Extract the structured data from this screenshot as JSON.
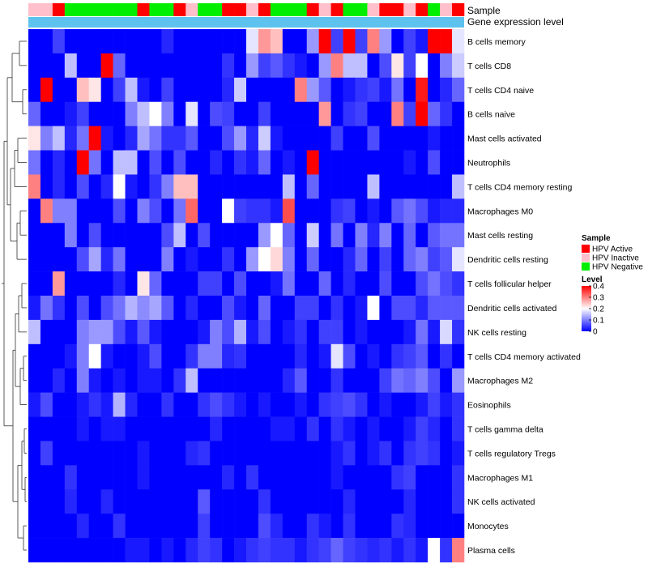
{
  "chart_data": {
    "type": "heatmap",
    "title": "",
    "annotation_labels": [
      "Sample",
      "Gene expression level"
    ],
    "rows": [
      "B cells memory",
      "T cells CD8",
      "T cells CD4 naive",
      "B cells naive",
      "Mast cells activated",
      "Neutrophils",
      "T cells CD4 memory resting",
      "Macrophages M0",
      "Mast cells resting",
      "Dendritic cells resting",
      "T cells follicular helper",
      "Dendritic cells activated",
      "NK cells resting",
      "T cells CD4 memory activated",
      "Macrophages M2",
      "Eosinophils",
      "T cells gamma delta",
      "T cells regulatory  Tregs",
      "Macrophages M1",
      "NK cells activated",
      "Monocytes",
      "Plasma cells"
    ],
    "columns": 36,
    "sample_annotation": [
      "I",
      "I",
      "A",
      "N",
      "N",
      "N",
      "N",
      "N",
      "N",
      "A",
      "N",
      "N",
      "A",
      "I",
      "N",
      "N",
      "A",
      "A",
      "I",
      "A",
      "N",
      "N",
      "N",
      "A",
      "I",
      "A",
      "N",
      "N",
      "I",
      "A",
      "A",
      "I",
      "A",
      "N",
      "I",
      "A"
    ],
    "value_range": [
      0,
      0.4
    ],
    "values": [
      [
        0,
        0,
        0.05,
        0,
        0,
        0,
        0,
        0,
        0,
        0,
        0,
        0.03,
        0,
        0,
        0,
        0,
        0,
        0,
        0.18,
        0.28,
        0.25,
        0,
        0,
        0.12,
        0.4,
        0.05,
        0.4,
        0.05,
        0.3,
        0.12,
        0,
        0.05,
        0.02,
        0.4,
        0.4,
        0.18
      ],
      [
        0,
        0,
        0,
        0.15,
        0,
        0,
        0.4,
        0.08,
        0,
        0,
        0,
        0,
        0,
        0,
        0,
        0,
        0.04,
        0,
        0.12,
        0.05,
        0.07,
        0.04,
        0.02,
        0,
        0.12,
        0.3,
        0.15,
        0.15,
        0,
        0.06,
        0.22,
        0.05,
        0.2,
        0,
        0.1,
        0.16
      ],
      [
        0,
        0.4,
        0,
        0,
        0.25,
        0.22,
        0,
        0.05,
        0.15,
        0.02,
        0,
        0.05,
        0,
        0,
        0,
        0,
        0.03,
        0.16,
        0,
        0,
        0,
        0,
        0.3,
        0.12,
        0.07,
        0,
        0.02,
        0.04,
        0.05,
        0.02,
        0.09,
        0,
        0.38,
        0,
        0.03,
        0.08
      ],
      [
        0.08,
        0,
        0,
        0.02,
        0.05,
        0,
        0,
        0,
        0.1,
        0.15,
        0.2,
        0.1,
        0,
        0.18,
        0,
        0.06,
        0.05,
        0,
        0,
        0.05,
        0,
        0,
        0,
        0,
        0.28,
        0,
        0.04,
        0.05,
        0,
        0,
        0.3,
        0.05,
        0.4,
        0.08,
        0.04,
        0
      ],
      [
        0.22,
        0.1,
        0.15,
        0.03,
        0.09,
        0.4,
        0.02,
        0,
        0.03,
        0.13,
        0.09,
        0.04,
        0.04,
        0.07,
        0,
        0,
        0.06,
        0.12,
        0.03,
        0.16,
        0.02,
        0,
        0,
        0,
        0,
        0.05,
        0,
        0,
        0.06,
        0,
        0,
        0,
        0,
        0.02,
        0,
        0
      ],
      [
        0.09,
        0,
        0.03,
        0,
        0.4,
        0.09,
        0,
        0.15,
        0.15,
        0,
        0.06,
        0,
        0.06,
        0,
        0,
        0.03,
        0,
        0.04,
        0.02,
        0.08,
        0,
        0.02,
        0,
        0.4,
        0,
        0,
        0,
        0,
        0,
        0,
        0,
        0.02,
        0,
        0.06,
        0,
        0
      ],
      [
        0.3,
        0,
        0.03,
        0,
        0.06,
        0,
        0.03,
        0.2,
        0.02,
        0,
        0.04,
        0.1,
        0.25,
        0.25,
        0,
        0,
        0,
        0,
        0,
        0,
        0,
        0.15,
        0,
        0.08,
        0,
        0,
        0,
        0,
        0.15,
        0,
        0,
        0,
        0,
        0,
        0,
        0.15
      ],
      [
        0,
        0.3,
        0.1,
        0.1,
        0,
        0,
        0,
        0.06,
        0,
        0.1,
        0.06,
        0,
        0.09,
        0.32,
        0,
        0,
        0.2,
        0.05,
        0.04,
        0.04,
        0.02,
        0.34,
        0,
        0,
        0,
        0.04,
        0.05,
        0,
        0.02,
        0,
        0.07,
        0.09,
        0.06,
        0.02,
        0.03,
        0.03
      ],
      [
        0,
        0,
        0,
        0.1,
        0,
        0.06,
        0,
        0,
        0,
        0,
        0,
        0.06,
        0.15,
        0,
        0.06,
        0,
        0,
        0,
        0,
        0.12,
        0.2,
        0.08,
        0,
        0.16,
        0,
        0.09,
        0,
        0.1,
        0.03,
        0.1,
        0,
        0.08,
        0,
        0.07,
        0.09,
        0.09
      ],
      [
        0,
        0,
        0,
        0,
        0.06,
        0.13,
        0.03,
        0.09,
        0,
        0,
        0,
        0.1,
        0,
        0.02,
        0,
        0,
        0.04,
        0,
        0.12,
        0.2,
        0.23,
        0.1,
        0,
        0.08,
        0,
        0,
        0.03,
        0.08,
        0,
        0.05,
        0,
        0.08,
        0.1,
        0.05,
        0.07,
        0.18
      ],
      [
        0,
        0,
        0.28,
        0,
        0,
        0,
        0,
        0.03,
        0,
        0.22,
        0.08,
        0,
        0,
        0,
        0.05,
        0.05,
        0,
        0.06,
        0,
        0,
        0.02,
        0.09,
        0,
        0,
        0.08,
        0,
        0.03,
        0,
        0,
        0.06,
        0,
        0,
        0.06,
        0.09,
        0.06,
        0.04
      ],
      [
        0.02,
        0.09,
        0.04,
        0,
        0.06,
        0,
        0.06,
        0.09,
        0.14,
        0.11,
        0.13,
        0.07,
        0,
        0.03,
        0,
        0,
        0.06,
        0.02,
        0,
        0.08,
        0,
        0,
        0.05,
        0.05,
        0,
        0.04,
        0,
        0.02,
        0.2,
        0,
        0.06,
        0.06,
        0.03,
        0.07,
        0.07,
        0.07
      ],
      [
        0.15,
        0,
        0,
        0,
        0.1,
        0.12,
        0.12,
        0.06,
        0.02,
        0.07,
        0.02,
        0,
        0,
        0,
        0.02,
        0.1,
        0.06,
        0.14,
        0.02,
        0.06,
        0,
        0.02,
        0.04,
        0,
        0.05,
        0.05,
        0,
        0.02,
        0,
        0,
        0,
        0.02,
        0.09,
        0.02,
        0.17,
        0.04
      ],
      [
        0,
        0,
        0,
        0.02,
        0.1,
        0.2,
        0.02,
        0,
        0,
        0.02,
        0.06,
        0,
        0,
        0.04,
        0.1,
        0.1,
        0.03,
        0.04,
        0,
        0,
        0,
        0,
        0.03,
        0,
        0.02,
        0.18,
        0.06,
        0,
        0.02,
        0,
        0.04,
        0.05,
        0.07,
        0,
        0.04,
        0
      ],
      [
        0,
        0,
        0.03,
        0,
        0.1,
        0.02,
        0,
        0.02,
        0,
        0.02,
        0.02,
        0,
        0.04,
        0.15,
        0,
        0,
        0,
        0,
        0,
        0,
        0,
        0.03,
        0.07,
        0,
        0,
        0.04,
        0,
        0,
        0,
        0.05,
        0.09,
        0.08,
        0.1,
        0.06,
        0,
        0.12
      ],
      [
        0.02,
        0.06,
        0,
        0,
        0.02,
        0.04,
        0.02,
        0.14,
        0.03,
        0,
        0,
        0.04,
        0,
        0,
        0.04,
        0.06,
        0.04,
        0.02,
        0,
        0.02,
        0,
        0,
        0.02,
        0,
        0.04,
        0.05,
        0.06,
        0.04,
        0,
        0.02,
        0,
        0,
        0.02,
        0.05,
        0.02,
        0.04
      ],
      [
        0,
        0,
        0,
        0,
        0.02,
        0,
        0.02,
        0.02,
        0,
        0,
        0,
        0,
        0,
        0,
        0,
        0.03,
        0,
        0,
        0,
        0,
        0.02,
        0.02,
        0,
        0.04,
        0,
        0.04,
        0.02,
        0,
        0.02,
        0,
        0,
        0.02,
        0.05,
        0.03,
        0,
        0.04
      ],
      [
        0,
        0.05,
        0,
        0,
        0,
        0,
        0,
        0,
        0,
        0.02,
        0,
        0,
        0,
        0.03,
        0.04,
        0,
        0,
        0,
        0,
        0,
        0,
        0,
        0,
        0,
        0,
        0.02,
        0.04,
        0,
        0.02,
        0.04,
        0,
        0.04,
        0.05,
        0.04,
        0,
        0.02
      ],
      [
        0,
        0,
        0,
        0.04,
        0,
        0,
        0,
        0,
        0,
        0.02,
        0,
        0,
        0,
        0,
        0,
        0,
        0.03,
        0,
        0.04,
        0,
        0,
        0,
        0,
        0,
        0,
        0.02,
        0,
        0,
        0,
        0,
        0.04,
        0.05,
        0,
        0,
        0,
        0.04
      ],
      [
        0,
        0,
        0,
        0.03,
        0,
        0,
        0.03,
        0,
        0,
        0,
        0,
        0,
        0,
        0,
        0.07,
        0,
        0,
        0,
        0,
        0.04,
        0,
        0,
        0,
        0,
        0,
        0,
        0.03,
        0,
        0,
        0,
        0,
        0.03,
        0,
        0,
        0,
        0.04
      ],
      [
        0,
        0,
        0,
        0,
        0.03,
        0,
        0,
        0.04,
        0,
        0,
        0,
        0,
        0,
        0,
        0.05,
        0,
        0,
        0,
        0,
        0.06,
        0.03,
        0,
        0,
        0.04,
        0.02,
        0,
        0.04,
        0,
        0,
        0,
        0.04,
        0.03,
        0,
        0,
        0,
        0
      ],
      [
        0,
        0,
        0,
        0,
        0,
        0,
        0,
        0,
        0.02,
        0.02,
        0,
        0.02,
        0,
        0.03,
        0.05,
        0.04,
        0,
        0.02,
        0.04,
        0.05,
        0.04,
        0.04,
        0.02,
        0.04,
        0.05,
        0.08,
        0.05,
        0.04,
        0.03,
        0.04,
        0.02,
        0.04,
        0.02,
        0.2,
        0.04,
        0.3
      ]
    ],
    "legend": {
      "sample_title": "Sample",
      "sample_entries": [
        {
          "label": "HPV Active",
          "color": "#ff0000"
        },
        {
          "label": "HPV Inactive",
          "color": "#ffc0cb"
        },
        {
          "label": "HPV Negative",
          "color": "#00ee00"
        }
      ],
      "level_title": "Level",
      "level_ticks": [
        "0.4",
        "0.3",
        "0.2",
        "0.1",
        "0"
      ],
      "level_values": [
        0.4,
        0.3,
        0.2,
        0.1,
        0
      ]
    },
    "colors": {
      "low": "#0000ff",
      "mid": "#ffffff",
      "high": "#ff0000",
      "gene_expression_bar": "#5ec2ee"
    }
  }
}
